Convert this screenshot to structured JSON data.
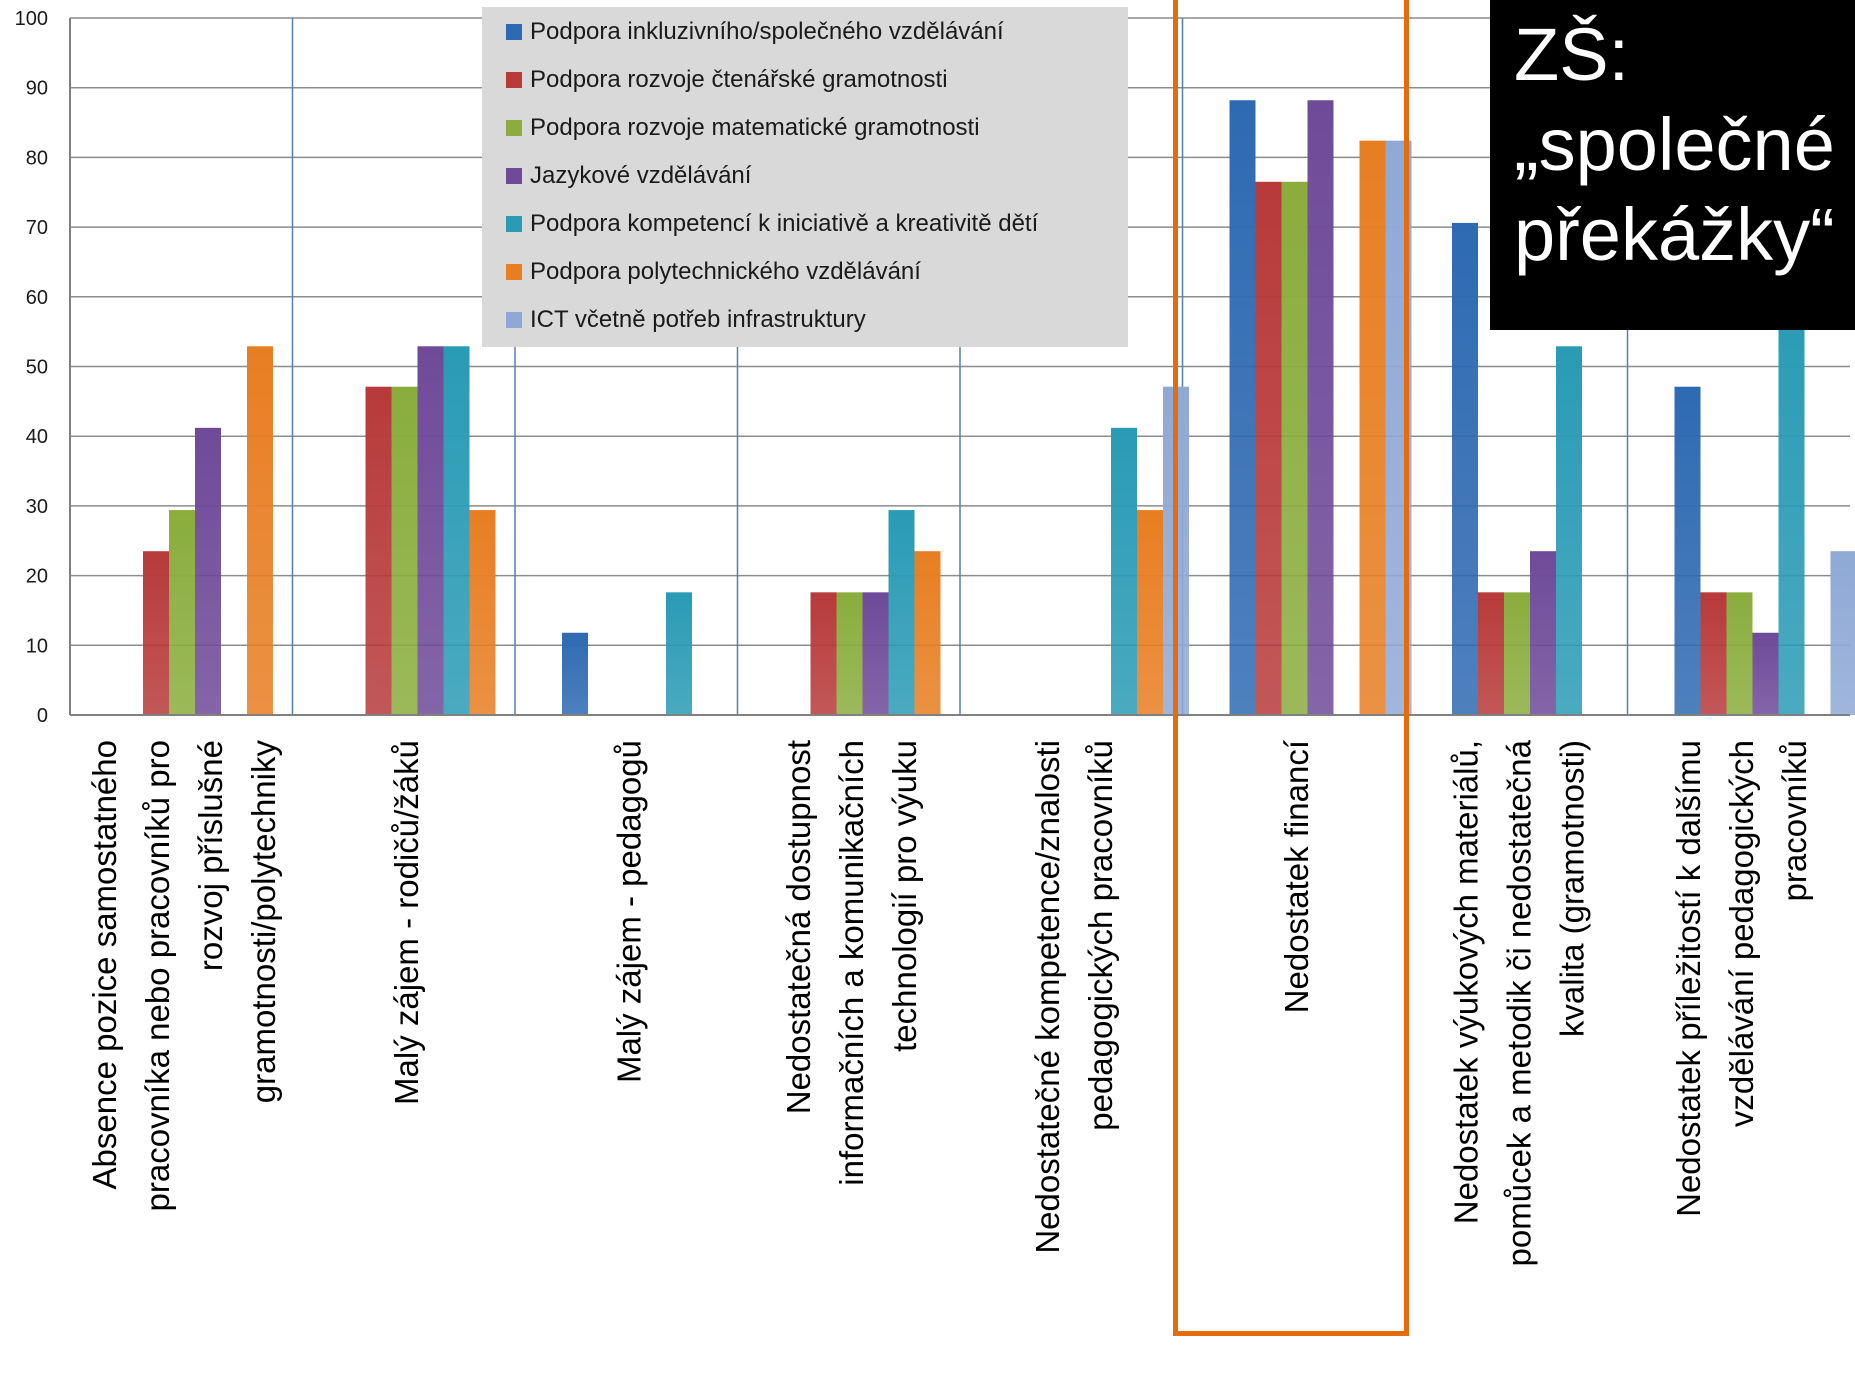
{
  "chart_data": {
    "type": "bar",
    "title": "ZŠ: „společné překážky“",
    "ylim": [
      0,
      100
    ],
    "yticks": [
      "0",
      "10",
      "20",
      "30",
      "40",
      "50",
      "60",
      "70",
      "80",
      "90",
      "100"
    ],
    "grid": true,
    "legend_position": "top-center",
    "categories": [
      [
        "Absence pozice samostatného",
        "pracovníka nebo pracovníků pro",
        "rozvoj příslušné",
        "gramotnosti/polytechniky"
      ],
      [
        "Malý zájem - rodičů/žáků"
      ],
      [
        "Malý zájem - pedagogů"
      ],
      [
        "Nedostatečná dostupnost",
        "informačních a komunikačních",
        "technologií pro výuku"
      ],
      [
        "Nedostatečné kompetence/znalosti",
        "pedagogických pracovníků"
      ],
      [
        "Nedostatek financí"
      ],
      [
        "Nedostatek výukových materiálů,",
        "pomůcek a metodik či nedostatečná",
        "kvalita (gramotnosti)"
      ],
      [
        "Nedostatek příležitostí k dalšímu",
        "vzdělávání pedagogických",
        "pracovníků"
      ]
    ],
    "series": [
      {
        "name": "Podpora inkluzivního/společného vzdělávání",
        "color": "#2e6ab2",
        "values": [
          0,
          0,
          11.8,
          0,
          0,
          88.2,
          70.6,
          47.1
        ]
      },
      {
        "name": "Podpora rozvoje čtenářské gramotnosti",
        "color": "#b83a3a",
        "values": [
          23.5,
          47.1,
          0,
          17.6,
          0,
          76.5,
          17.6,
          17.6
        ]
      },
      {
        "name": " Podpora rozvoje matematické gramotnosti",
        "color": "#8aad3d",
        "values": [
          29.4,
          47.1,
          0,
          17.6,
          0,
          76.5,
          17.6,
          17.6
        ]
      },
      {
        "name": " Jazykové vzdělávání",
        "color": "#6f4a99",
        "values": [
          41.2,
          52.9,
          0,
          17.6,
          0,
          88.2,
          23.5,
          11.8
        ]
      },
      {
        "name": "Podpora kompetencí k iniciativě a kreativitě dětí",
        "color": "#2a9bb5",
        "values": [
          0,
          52.9,
          17.6,
          29.4,
          41.2,
          0,
          52.9,
          58.8
        ]
      },
      {
        "name": "Podpora polytechnického vzdělávání",
        "color": "#e87e22",
        "values": [
          52.9,
          29.4,
          0,
          23.5,
          29.4,
          82.4,
          0,
          0
        ]
      },
      {
        "name": " ICT včetně potřeb infrastruktury",
        "color": "#8fa9d6",
        "values": [
          0,
          0,
          0,
          0,
          47.1,
          82.4,
          0,
          23.5
        ]
      }
    ]
  },
  "title_lines": [
    "ZŠ:",
    "„společné",
    "překážky“"
  ]
}
